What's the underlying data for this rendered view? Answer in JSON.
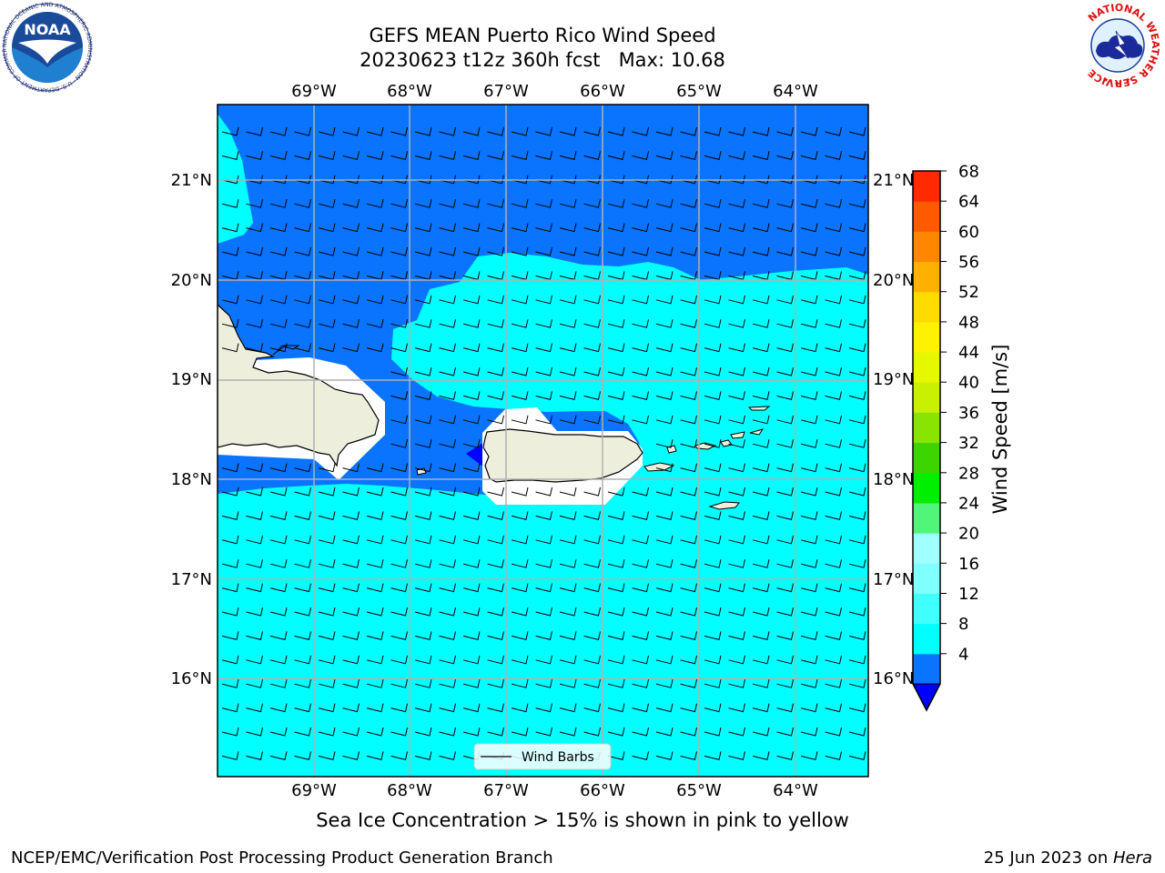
{
  "header": {
    "title_line1": "GEFS MEAN Puerto Rico Wind Speed",
    "title_line2": "20230623 t12z 360h fcst   Max: 10.68"
  },
  "map": {
    "lon_ticks": [
      "69°W",
      "68°W",
      "67°W",
      "66°W",
      "65°W",
      "64°W"
    ],
    "lat_ticks": [
      "21°N",
      "20°N",
      "19°N",
      "18°N",
      "17°N",
      "16°N"
    ],
    "legend_label": "Wind Barbs",
    "colors": {
      "land": "#eeeedd",
      "fill_4_8": "#0a74ff",
      "fill_8_12": "#00ffff",
      "below_4": "#0000ff"
    }
  },
  "colorbar": {
    "label": "Wind Speed [m/s]",
    "ticks": [
      "68",
      "64",
      "60",
      "56",
      "52",
      "48",
      "44",
      "40",
      "36",
      "32",
      "28",
      "24",
      "20",
      "16",
      "12",
      "8",
      "4"
    ],
    "colors": [
      "#0a74ff",
      "#00ffff",
      "#40ffff",
      "#80ffff",
      "#a0ffff",
      "#50f57a",
      "#00ee00",
      "#3dd500",
      "#88e400",
      "#c8f000",
      "#e5f800",
      "#fff200",
      "#ffdb00",
      "#ffb000",
      "#ff8700",
      "#ff5a00",
      "#ff2a00",
      "#ff0000"
    ]
  },
  "footer": {
    "note": "Sea Ice Concentration > 15% is shown in pink to yellow",
    "credit_left": "NCEP/EMC/Verification Post Processing Product Generation Branch",
    "credit_date": "25 Jun 2023 on ",
    "credit_host": "Hera"
  },
  "logos": {
    "noaa_text": "NOAA",
    "noaa_ring_text": "NATIONAL OCEANIC AND ATMOSPHERIC ADMINISTRATION · U.S. DEPARTMENT OF COMMERCE ·",
    "nws_ring_text": "NATIONAL WEATHER SERVICE"
  }
}
